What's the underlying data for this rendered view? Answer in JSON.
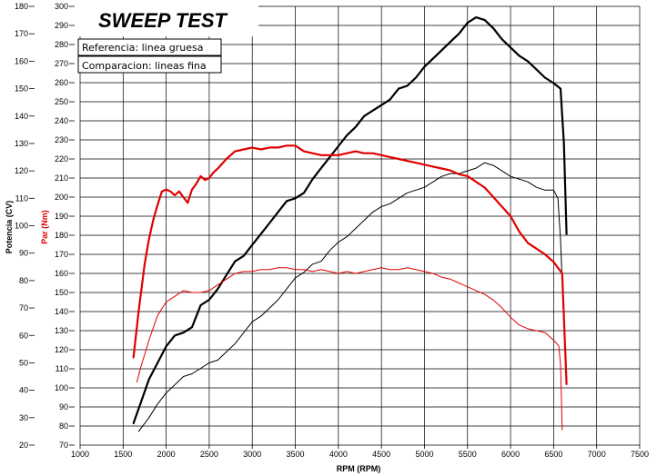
{
  "chart_data": {
    "type": "line",
    "title": "SWEEP TEST",
    "legend": [
      "Referencia: linea gruesa",
      "Comparacion: lineas fina"
    ],
    "xlabel": "RPM (RPM)",
    "ylabel_power": "Potencia (CV)",
    "ylabel_torque": "Par (Nm)",
    "xlim": [
      1000,
      7500
    ],
    "xticks": [
      1000,
      1500,
      2000,
      2500,
      3000,
      3500,
      4000,
      4500,
      5000,
      5500,
      6000,
      6500,
      7000,
      7500
    ],
    "power_lim": [
      20,
      180
    ],
    "power_ticks": [
      20,
      30,
      40,
      50,
      60,
      70,
      80,
      90,
      100,
      110,
      120,
      130,
      140,
      150,
      160,
      170,
      180
    ],
    "torque_lim": [
      70,
      300
    ],
    "torque_ticks": [
      70,
      80,
      90,
      100,
      110,
      120,
      130,
      140,
      150,
      160,
      170,
      180,
      190,
      200,
      210,
      220,
      230,
      240,
      250,
      260,
      270,
      280,
      290,
      300
    ],
    "colors": {
      "power": "#000000",
      "torque": "#e00000",
      "grid": "#000000"
    },
    "series": [
      {
        "name": "Potencia referencia",
        "axis": "power",
        "color": "#000000",
        "width": 2.2,
        "x": [
          1620,
          1700,
          1800,
          1900,
          2000,
          2100,
          2200,
          2300,
          2400,
          2500,
          2600,
          2700,
          2800,
          2900,
          3000,
          3100,
          3200,
          3300,
          3400,
          3500,
          3600,
          3700,
          3800,
          3900,
          4000,
          4100,
          4200,
          4300,
          4400,
          4500,
          4600,
          4700,
          4800,
          4900,
          5000,
          5100,
          5200,
          5300,
          5400,
          5500,
          5600,
          5700,
          5800,
          5900,
          6000,
          6100,
          6200,
          6300,
          6400,
          6500,
          6580,
          6620,
          6650
        ],
        "y": [
          28,
          35,
          44,
          50,
          56,
          60,
          61,
          63,
          71,
          73,
          77,
          82,
          87,
          89,
          93,
          97,
          101,
          105,
          109,
          110,
          112,
          117,
          121,
          125,
          129,
          133,
          136,
          140,
          142,
          144,
          146,
          150,
          151,
          154,
          158,
          161,
          164,
          167,
          170,
          174,
          176,
          175,
          172,
          168,
          165,
          162,
          160,
          157,
          154,
          152,
          150,
          130,
          97
        ]
      },
      {
        "name": "Potencia comparacion",
        "axis": "power",
        "color": "#000000",
        "width": 1,
        "x": [
          1680,
          1800,
          1900,
          2000,
          2100,
          2200,
          2300,
          2400,
          2500,
          2600,
          2700,
          2800,
          2900,
          3000,
          3100,
          3200,
          3300,
          3400,
          3500,
          3600,
          3700,
          3800,
          3900,
          4000,
          4100,
          4200,
          4300,
          4400,
          4500,
          4600,
          4700,
          4800,
          4900,
          5000,
          5100,
          5200,
          5300,
          5400,
          5500,
          5600,
          5700,
          5800,
          5900,
          6000,
          6100,
          6200,
          6300,
          6400,
          6500,
          6550,
          6580,
          6600
        ],
        "y": [
          25,
          30,
          35,
          39,
          42,
          45,
          46,
          48,
          50,
          51,
          54,
          57,
          61,
          65,
          67,
          70,
          73,
          77,
          81,
          83,
          86,
          87,
          91,
          94,
          96,
          99,
          102,
          105,
          107,
          108,
          110,
          112,
          113,
          114,
          116,
          118,
          119,
          119,
          120,
          121,
          123,
          122,
          120,
          118,
          117,
          116,
          114,
          113,
          113,
          110,
          95,
          80
        ]
      },
      {
        "name": "Par referencia",
        "axis": "torque",
        "color": "#e00000",
        "width": 2.2,
        "x": [
          1620,
          1680,
          1750,
          1800,
          1850,
          1900,
          1950,
          2000,
          2050,
          2100,
          2150,
          2200,
          2250,
          2300,
          2350,
          2400,
          2450,
          2500,
          2550,
          2600,
          2700,
          2800,
          2900,
          3000,
          3100,
          3200,
          3300,
          3400,
          3500,
          3600,
          3700,
          3800,
          3900,
          4000,
          4100,
          4200,
          4300,
          4400,
          4500,
          4600,
          4700,
          4800,
          4900,
          5000,
          5100,
          5200,
          5300,
          5400,
          5500,
          5600,
          5700,
          5800,
          5900,
          6000,
          6100,
          6200,
          6300,
          6400,
          6500,
          6600,
          6650
        ],
        "y": [
          116,
          140,
          165,
          178,
          188,
          196,
          203,
          204,
          203,
          201,
          203,
          200,
          197,
          204,
          207,
          211,
          209,
          210,
          213,
          215,
          220,
          224,
          225,
          226,
          225,
          226,
          226,
          227,
          227,
          224,
          223,
          222,
          222,
          222,
          223,
          224,
          223,
          223,
          222,
          221,
          220,
          219,
          218,
          217,
          216,
          215,
          214,
          212,
          211,
          208,
          205,
          200,
          195,
          190,
          182,
          176,
          173,
          170,
          166,
          160,
          102
        ]
      },
      {
        "name": "Par comparacion",
        "axis": "torque",
        "color": "#e00000",
        "width": 1,
        "x": [
          1660,
          1700,
          1800,
          1900,
          2000,
          2100,
          2200,
          2300,
          2400,
          2500,
          2600,
          2700,
          2800,
          2900,
          3000,
          3100,
          3200,
          3300,
          3400,
          3500,
          3600,
          3700,
          3800,
          3900,
          4000,
          4100,
          4200,
          4300,
          4400,
          4500,
          4600,
          4700,
          4800,
          4900,
          5000,
          5100,
          5200,
          5300,
          5400,
          5500,
          5600,
          5700,
          5800,
          5900,
          6000,
          6100,
          6200,
          6300,
          6400,
          6500,
          6560,
          6580,
          6600
        ],
        "y": [
          103,
          110,
          125,
          138,
          145,
          148,
          151,
          150,
          150,
          151,
          154,
          157,
          160,
          161,
          161,
          162,
          162,
          163,
          163,
          162,
          162,
          161,
          162,
          161,
          160,
          161,
          160,
          161,
          162,
          163,
          162,
          162,
          163,
          162,
          161,
          160,
          158,
          157,
          155,
          153,
          151,
          149,
          146,
          142,
          137,
          133,
          131,
          130,
          129,
          125,
          122,
          112,
          78
        ]
      }
    ]
  }
}
